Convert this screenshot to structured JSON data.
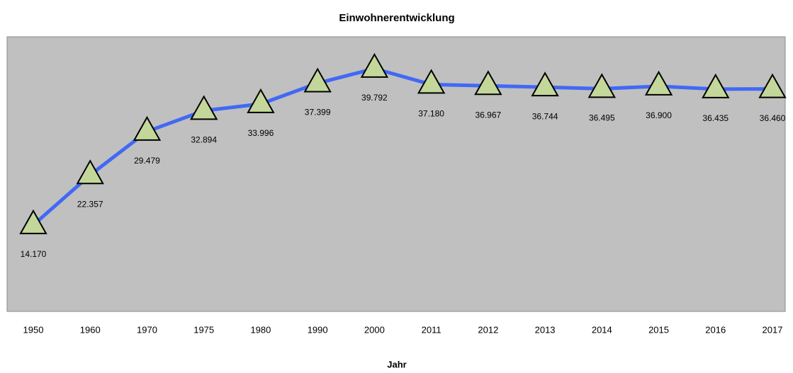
{
  "chart_data": {
    "type": "line",
    "title": "Einwohnerentwicklung",
    "x_label": "Jahr",
    "categories": [
      "1950",
      "1960",
      "1970",
      "1975",
      "1980",
      "1990",
      "2000",
      "2011",
      "2012",
      "2013",
      "2014",
      "2015",
      "2016",
      "2017"
    ],
    "series": [
      {
        "name": "Einwohner",
        "color": "#4169f5",
        "marker_color": "#c4d79b",
        "values": [
          14170,
          22357,
          29479,
          32894,
          33996,
          37399,
          39792,
          37180,
          36967,
          36744,
          36495,
          36900,
          36435,
          36460
        ],
        "value_labels": [
          "14.170",
          "22.357",
          "29.479",
          "32.894",
          "33.996",
          "37.399",
          "39.792",
          "37.180",
          "36.967",
          "36.744",
          "36.495",
          "36.900",
          "36.435",
          "36.460"
        ]
      }
    ],
    "ylim": [
      0,
      45000
    ]
  }
}
